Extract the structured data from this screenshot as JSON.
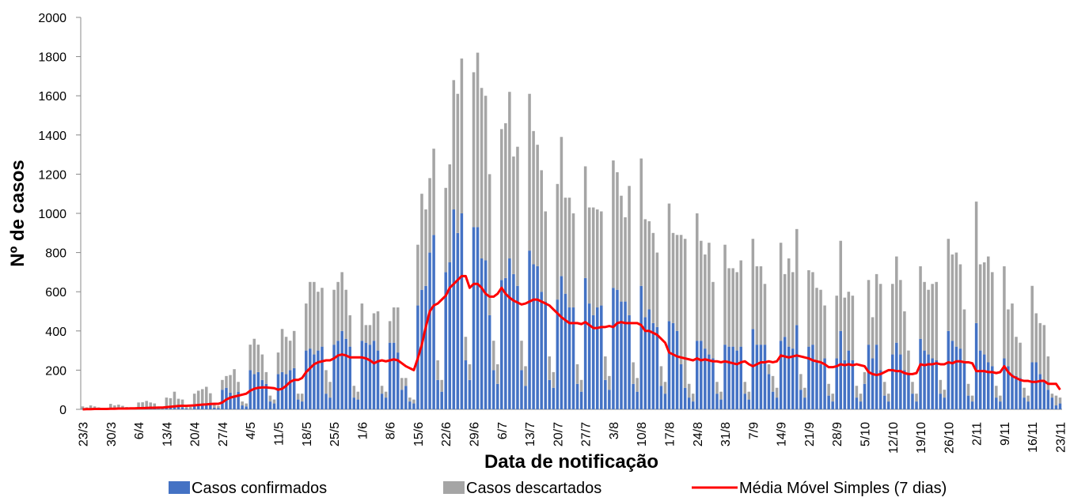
{
  "chart_data": {
    "type": "bar",
    "stacked": true,
    "x_label": "Data de notificação",
    "y_label": "Nº de casos",
    "ylim": [
      0,
      2000
    ],
    "yticks": [
      0,
      200,
      400,
      600,
      800,
      1000,
      1200,
      1400,
      1600,
      1800,
      2000
    ],
    "categories": [
      "23/3",
      null,
      null,
      null,
      null,
      null,
      null,
      "30/3",
      null,
      null,
      null,
      null,
      null,
      null,
      "6/4",
      null,
      null,
      null,
      null,
      null,
      null,
      "13/4",
      null,
      null,
      null,
      null,
      null,
      null,
      "20/4",
      null,
      null,
      null,
      null,
      null,
      null,
      "27/4",
      null,
      null,
      null,
      null,
      null,
      null,
      "4/5",
      null,
      null,
      null,
      null,
      null,
      null,
      "11/5",
      null,
      null,
      null,
      null,
      null,
      null,
      "18/5",
      null,
      null,
      null,
      null,
      null,
      null,
      "25/5",
      null,
      null,
      null,
      null,
      null,
      null,
      "1/6",
      null,
      null,
      null,
      null,
      null,
      null,
      "8/6",
      null,
      null,
      null,
      null,
      null,
      null,
      "15/6",
      null,
      null,
      null,
      null,
      null,
      null,
      "22/6",
      null,
      null,
      null,
      null,
      null,
      null,
      "29/6",
      null,
      null,
      null,
      null,
      null,
      null,
      "6/7",
      null,
      null,
      null,
      null,
      null,
      null,
      "13/7",
      null,
      null,
      null,
      null,
      null,
      null,
      "20/7",
      null,
      null,
      null,
      null,
      null,
      null,
      "27/7",
      null,
      null,
      null,
      null,
      null,
      null,
      "3/8",
      null,
      null,
      null,
      null,
      null,
      null,
      "10/8",
      null,
      null,
      null,
      null,
      null,
      null,
      "17/8",
      null,
      null,
      null,
      null,
      null,
      null,
      "24/8",
      null,
      null,
      null,
      null,
      null,
      null,
      "31/8",
      null,
      null,
      null,
      null,
      null,
      null,
      "7/9",
      null,
      null,
      null,
      null,
      null,
      null,
      "14/9",
      null,
      null,
      null,
      null,
      null,
      null,
      "21/9",
      null,
      null,
      null,
      null,
      null,
      null,
      "28/9",
      null,
      null,
      null,
      null,
      null,
      null,
      "5/10",
      null,
      null,
      null,
      null,
      null,
      null,
      "12/10",
      null,
      null,
      null,
      null,
      null,
      null,
      "19/10",
      null,
      null,
      null,
      null,
      null,
      null,
      "26/10",
      null,
      null,
      null,
      null,
      null,
      null,
      "2/11",
      null,
      null,
      null,
      null,
      null,
      null,
      "9/11",
      null,
      null,
      null,
      null,
      null,
      null,
      "16/11",
      null,
      null,
      null,
      null,
      null,
      null,
      "23/11"
    ],
    "series": [
      {
        "name": "Casos confirmados",
        "type": "bar",
        "color": "#4472c4",
        "values": [
          2,
          1,
          3,
          2,
          1,
          0,
          1,
          3,
          2,
          4,
          3,
          2,
          1,
          1,
          5,
          6,
          8,
          7,
          5,
          2,
          2,
          10,
          12,
          15,
          14,
          10,
          4,
          3,
          20,
          25,
          28,
          30,
          22,
          8,
          6,
          100,
          110,
          85,
          70,
          90,
          20,
          15,
          200,
          180,
          190,
          150,
          130,
          40,
          30,
          180,
          190,
          180,
          200,
          210,
          50,
          40,
          300,
          310,
          280,
          300,
          320,
          80,
          60,
          330,
          350,
          400,
          360,
          320,
          60,
          50,
          350,
          340,
          330,
          350,
          300,
          80,
          60,
          340,
          340,
          290,
          100,
          120,
          40,
          30,
          530,
          610,
          630,
          800,
          890,
          150,
          90,
          700,
          750,
          1020,
          900,
          1000,
          250,
          150,
          930,
          930,
          770,
          760,
          480,
          200,
          130,
          660,
          670,
          770,
          690,
          630,
          200,
          120,
          810,
          740,
          730,
          600,
          550,
          150,
          110,
          560,
          680,
          590,
          520,
          520,
          130,
          90,
          670,
          540,
          480,
          520,
          530,
          150,
          100,
          620,
          610,
          550,
          550,
          480,
          130,
          90,
          630,
          470,
          510,
          440,
          420,
          120,
          80,
          450,
          440,
          400,
          230,
          110,
          60,
          40,
          350,
          350,
          310,
          280,
          260,
          80,
          50,
          330,
          320,
          320,
          300,
          320,
          80,
          50,
          410,
          330,
          330,
          330,
          180,
          90,
          60,
          350,
          370,
          320,
          310,
          430,
          100,
          60,
          320,
          330,
          250,
          230,
          260,
          70,
          40,
          260,
          400,
          250,
          300,
          250,
          60,
          40,
          130,
          330,
          260,
          330,
          200,
          70,
          40,
          280,
          340,
          280,
          200,
          180,
          80,
          40,
          360,
          300,
          280,
          260,
          250,
          80,
          60,
          400,
          350,
          320,
          310,
          240,
          70,
          40,
          440,
          300,
          280,
          240,
          220,
          60,
          40,
          260,
          220,
          180,
          170,
          160,
          60,
          40,
          240,
          240,
          180,
          150,
          100,
          60,
          20,
          30
        ]
      },
      {
        "name": "Casos descartados",
        "type": "bar",
        "color": "#a5a5a5",
        "values": [
          13,
          9,
          17,
          13,
          9,
          5,
          4,
          25,
          18,
          20,
          15,
          10,
          5,
          5,
          30,
          30,
          35,
          28,
          25,
          8,
          6,
          50,
          45,
          75,
          40,
          40,
          12,
          10,
          60,
          70,
          75,
          85,
          60,
          15,
          12,
          50,
          60,
          90,
          135,
          50,
          20,
          15,
          130,
          180,
          140,
          130,
          60,
          30,
          20,
          110,
          220,
          190,
          150,
          190,
          30,
          40,
          240,
          340,
          370,
          300,
          300,
          120,
          80,
          280,
          300,
          300,
          250,
          160,
          60,
          40,
          190,
          90,
          100,
          140,
          200,
          40,
          30,
          110,
          180,
          230,
          60,
          40,
          20,
          20,
          310,
          490,
          390,
          380,
          440,
          100,
          60,
          430,
          500,
          660,
          710,
          790,
          120,
          80,
          790,
          890,
          870,
          840,
          720,
          150,
          100,
          770,
          790,
          850,
          600,
          710,
          150,
          100,
          800,
          680,
          620,
          620,
          460,
          120,
          80,
          590,
          710,
          490,
          560,
          480,
          100,
          60,
          570,
          490,
          550,
          500,
          480,
          120,
          70,
          650,
          600,
          540,
          430,
          660,
          110,
          70,
          650,
          500,
          450,
          460,
          380,
          100,
          60,
          600,
          460,
          490,
          660,
          760,
          70,
          40,
          650,
          510,
          480,
          570,
          390,
          60,
          40,
          510,
          400,
          400,
          400,
          440,
          60,
          40,
          460,
          400,
          400,
          310,
          50,
          80,
          50,
          500,
          320,
          450,
          390,
          490,
          80,
          50,
          390,
          370,
          370,
          380,
          270,
          60,
          40,
          320,
          460,
          320,
          300,
          330,
          60,
          40,
          60,
          330,
          210,
          360,
          440,
          70,
          40,
          360,
          440,
          380,
          300,
          120,
          60,
          40,
          370,
          350,
          330,
          380,
          400,
          70,
          40,
          470,
          440,
          480,
          430,
          270,
          60,
          30,
          620,
          440,
          470,
          540,
          480,
          60,
          30,
          470,
          290,
          360,
          200,
          180,
          50,
          30,
          390,
          250,
          260,
          280,
          170,
          20,
          50,
          30
        ]
      },
      {
        "name": "Média Móvel Simples (7 dias)",
        "type": "line",
        "color": "#ff0000",
        "values": [
          0,
          1,
          1,
          2,
          2,
          2,
          2,
          3,
          3,
          4,
          4,
          4,
          5,
          5,
          6,
          6,
          7,
          8,
          8,
          9,
          9,
          11,
          13,
          15,
          17,
          18,
          18,
          19,
          20,
          22,
          24,
          25,
          27,
          28,
          28,
          35,
          50,
          60,
          65,
          70,
          75,
          80,
          95,
          105,
          110,
          112,
          112,
          110,
          108,
          100,
          105,
          120,
          140,
          150,
          150,
          160,
          190,
          210,
          230,
          240,
          245,
          250,
          250,
          260,
          275,
          280,
          275,
          265,
          265,
          265,
          265,
          260,
          250,
          235,
          245,
          250,
          245,
          250,
          255,
          250,
          235,
          220,
          210,
          200,
          260,
          330,
          420,
          500,
          530,
          540,
          560,
          580,
          620,
          640,
          660,
          680,
          680,
          620,
          640,
          640,
          620,
          590,
          575,
          575,
          590,
          620,
          590,
          570,
          555,
          545,
          535,
          540,
          550,
          560,
          560,
          550,
          540,
          530,
          510,
          490,
          470,
          455,
          440,
          440,
          440,
          435,
          445,
          430,
          415,
          415,
          420,
          420,
          425,
          420,
          440,
          445,
          440,
          440,
          440,
          440,
          430,
          400,
          400,
          390,
          380,
          360,
          340,
          290,
          280,
          270,
          265,
          260,
          255,
          250,
          260,
          250,
          255,
          250,
          245,
          245,
          240,
          245,
          240,
          235,
          230,
          240,
          245,
          230,
          220,
          230,
          240,
          240,
          245,
          240,
          245,
          275,
          270,
          265,
          270,
          275,
          270,
          265,
          260,
          250,
          245,
          240,
          230,
          215,
          215,
          220,
          230,
          225,
          230,
          225,
          230,
          225,
          220,
          190,
          180,
          175,
          180,
          190,
          200,
          200,
          195,
          195,
          185,
          180,
          180,
          185,
          230,
          225,
          230,
          230,
          235,
          230,
          230,
          240,
          235,
          245,
          245,
          240,
          240,
          235,
          195,
          195,
          195,
          190,
          190,
          185,
          190,
          220,
          190,
          170,
          160,
          150,
          145,
          145,
          140,
          140,
          145,
          145,
          130,
          130,
          130,
          100
        ]
      }
    ]
  }
}
